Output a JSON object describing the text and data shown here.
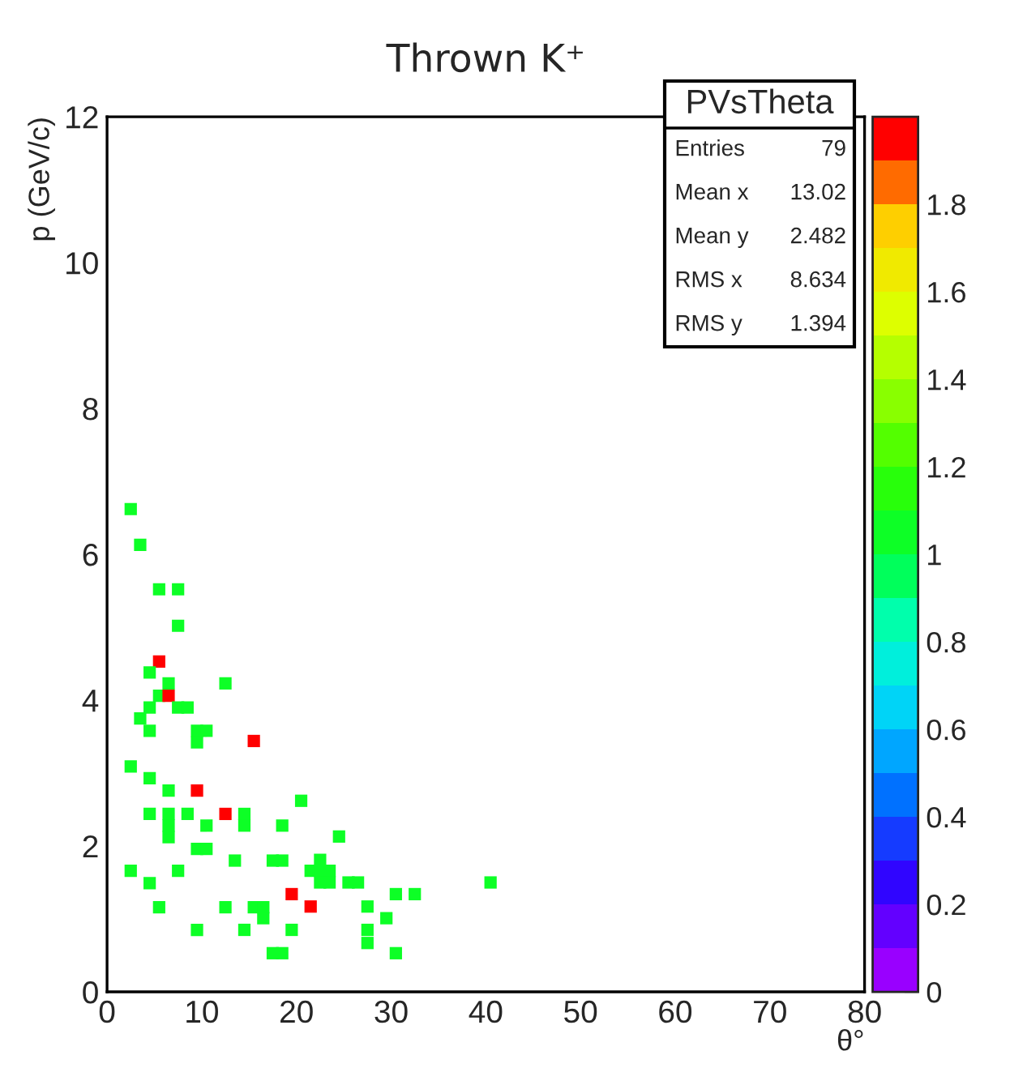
{
  "chart_data": {
    "type": "scatter",
    "title": "Thrown K⁺",
    "xlabel": "θ°",
    "ylabel": "p (GeV/c)",
    "xlim": [
      0,
      80
    ],
    "xticks": [
      0,
      10,
      20,
      30,
      40,
      50,
      60,
      70,
      80
    ],
    "ylim": [
      0,
      12
    ],
    "yticks": [
      0,
      2,
      4,
      6,
      8,
      10,
      12
    ],
    "clim": [
      0,
      2
    ],
    "cticks": [
      0,
      0.2,
      0.4,
      0.6,
      0.8,
      1,
      1.2,
      1.4,
      1.6,
      1.8
    ],
    "marker": "square",
    "grid": false,
    "annotations": [
      "PVsTheta",
      "Entries",
      "79",
      "Mean x",
      "13.02",
      "Mean y",
      "2.482",
      "RMS x",
      "8.634",
      "RMS y",
      "1.394"
    ],
    "x": [
      2.5,
      3.5,
      5.5,
      7.5,
      7.5,
      5.5,
      4.5,
      6.5,
      5.5,
      6.5,
      4.5,
      7.5,
      8.5,
      12.5,
      3.5,
      4.5,
      9.5,
      10.5,
      9.5,
      15.5,
      2.5,
      4.5,
      6.5,
      9.5,
      20.5,
      4.5,
      6.5,
      6.5,
      6.5,
      8.5,
      12.5,
      14.5,
      14.5,
      10.5,
      18.5,
      9.5,
      10.5,
      13.5,
      17.5,
      18.5,
      2.5,
      7.5,
      4.5,
      5.5,
      12.5,
      15.5,
      16.5,
      16.5,
      19.5,
      9.5,
      14.5,
      19.5,
      17.5,
      18.5,
      24.5,
      22.5,
      21.5,
      22.5,
      23.5,
      22.5,
      23.5,
      25.5,
      26.5,
      21.5,
      30.5,
      32.5,
      40.5,
      27.5,
      29.5,
      27.5,
      27.5,
      30.5
    ],
    "values": [
      6.62,
      6.13,
      5.52,
      5.52,
      5.02,
      4.53,
      4.38,
      4.23,
      4.06,
      4.06,
      3.9,
      3.9,
      3.9,
      4.23,
      3.75,
      3.58,
      3.58,
      3.58,
      3.42,
      3.44,
      3.09,
      2.93,
      2.76,
      2.76,
      2.62,
      2.44,
      2.44,
      2.28,
      2.12,
      2.44,
      2.44,
      2.44,
      2.28,
      2.28,
      2.28,
      1.96,
      1.96,
      1.8,
      1.8,
      1.8,
      1.66,
      1.66,
      1.49,
      1.16,
      1.16,
      1.16,
      1.16,
      1.01,
      1.34,
      0.85,
      0.85,
      0.85,
      0.53,
      0.53,
      2.13,
      1.81,
      1.66,
      1.66,
      1.66,
      1.5,
      1.5,
      1.5,
      1.5,
      1.17,
      1.34,
      1.34,
      1.5,
      1.17,
      1.01,
      0.85,
      0.67,
      0.53
    ],
    "cvalues": [
      1,
      1,
      1,
      1,
      1,
      2,
      1,
      1,
      1,
      2,
      1,
      1,
      1,
      1,
      1,
      1,
      1,
      1,
      1,
      2,
      1,
      1,
      1,
      2,
      1,
      1,
      1,
      1,
      1,
      1,
      2,
      1,
      1,
      1,
      1,
      1,
      1,
      1,
      1,
      1,
      1,
      1,
      1,
      1,
      1,
      1,
      1,
      1,
      2,
      1,
      1,
      1,
      1,
      1,
      1,
      1,
      1,
      1,
      1,
      1,
      1,
      1,
      1,
      2,
      1,
      1,
      1,
      1,
      1,
      1,
      1,
      1
    ]
  }
}
